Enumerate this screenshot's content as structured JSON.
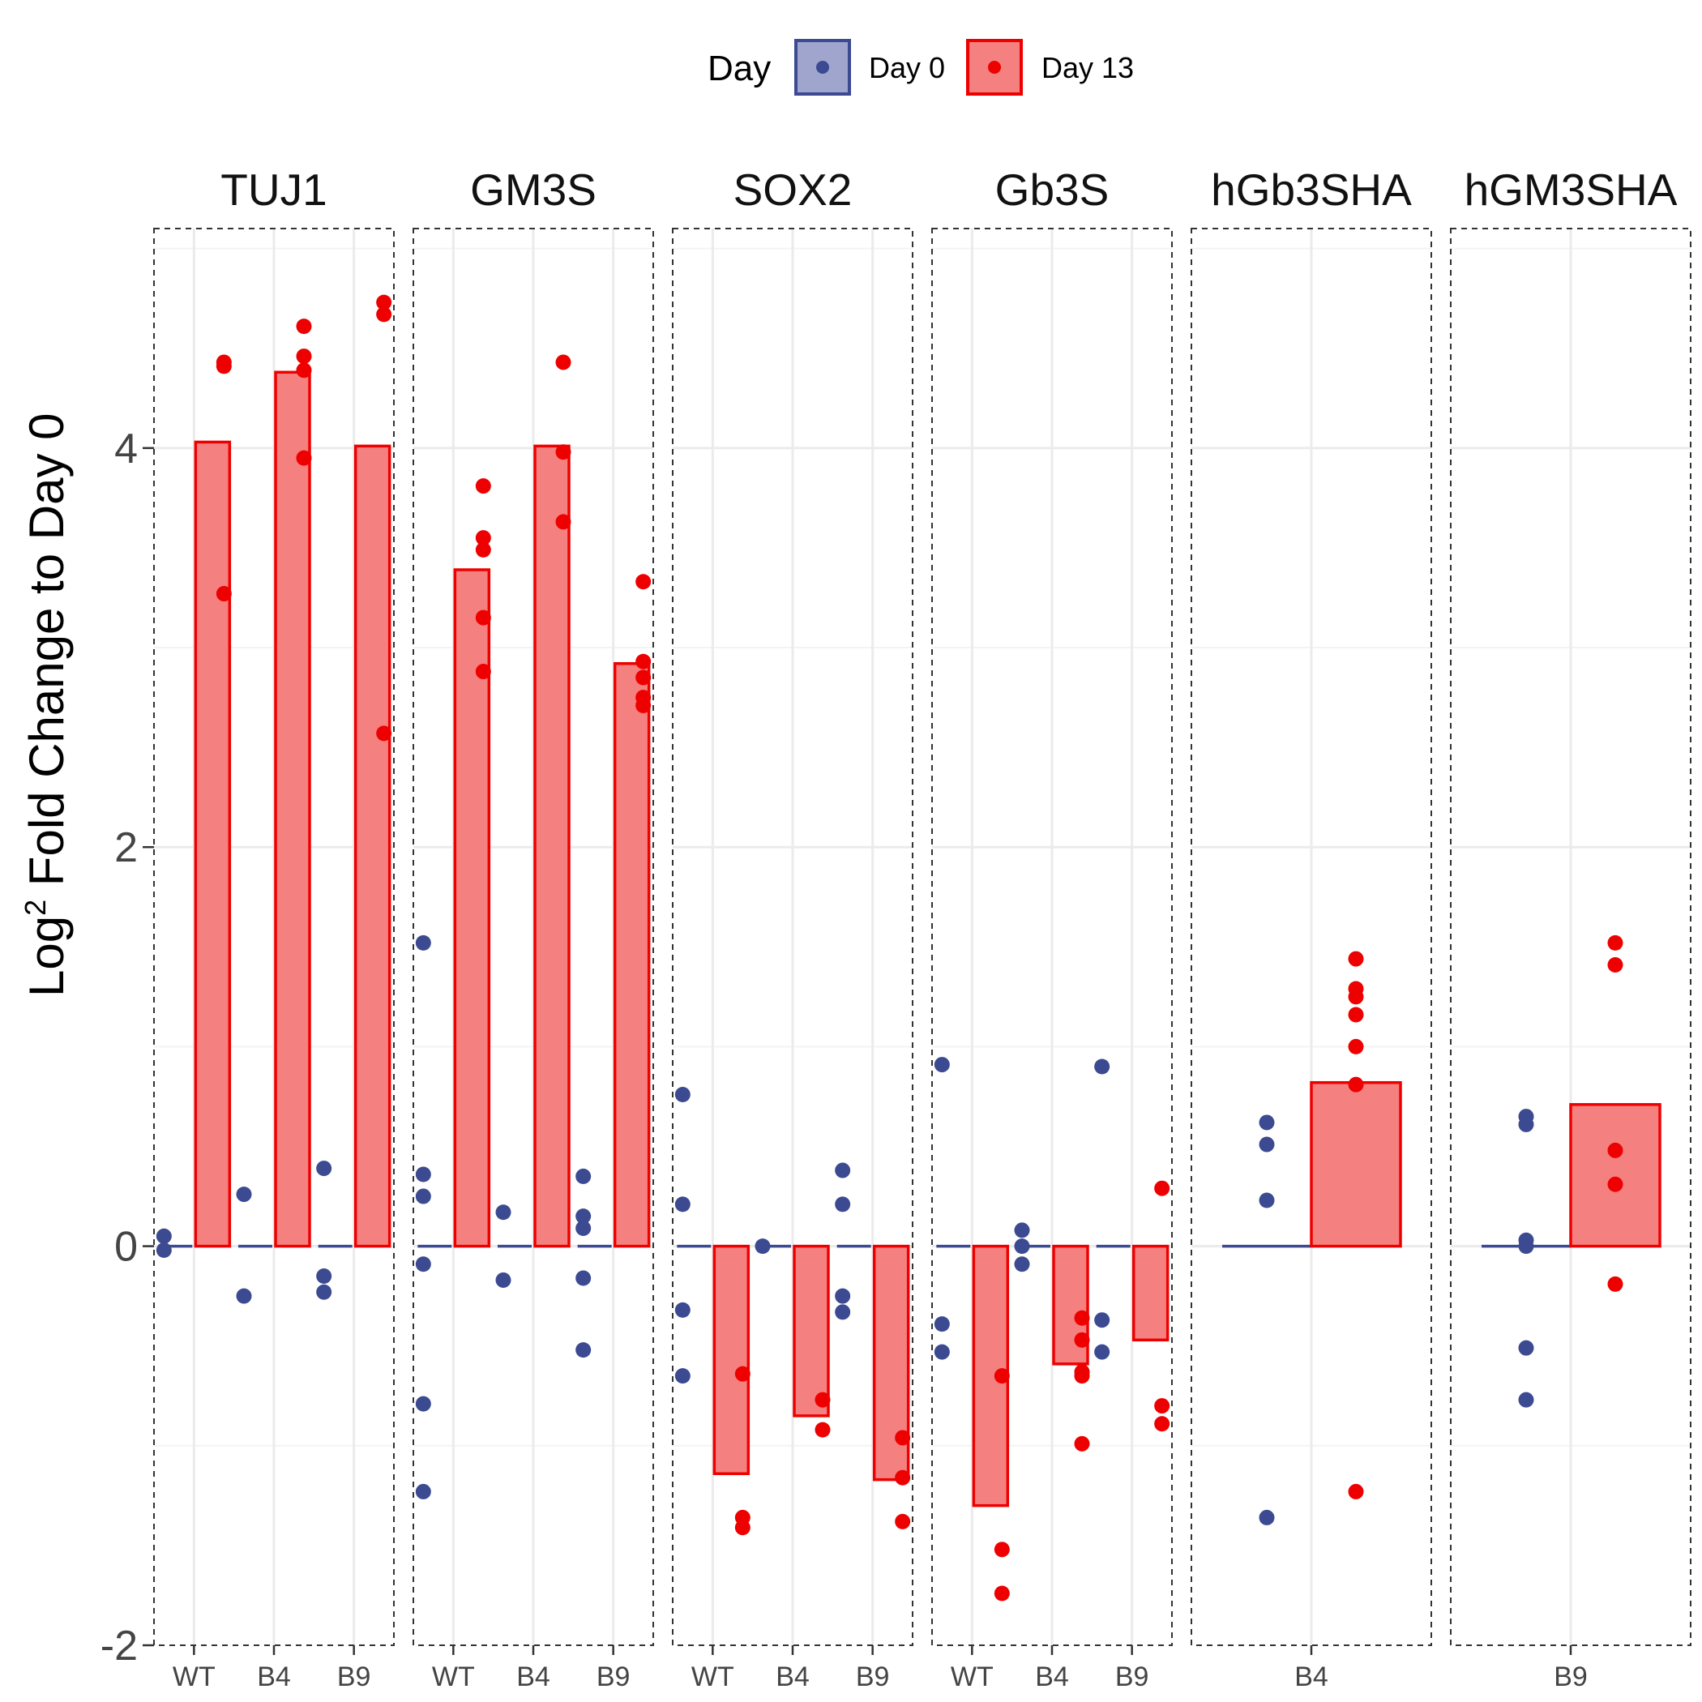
{
  "chart_data": {
    "type": "bar",
    "ylabel": "Log",
    "ylabel_superscript": "2",
    "ylabel_rest": " Fold Change to Day 0",
    "ylim": [
      -2,
      5.1
    ],
    "yticks": [
      -2,
      0,
      2,
      4
    ],
    "grid": true,
    "legend": {
      "title": "Day",
      "position": "top",
      "entries": [
        {
          "label": "Day 0",
          "color": "#3B4A91",
          "fill": "#9FA5CC"
        },
        {
          "label": "Day 13",
          "color": "#EE0000",
          "fill": "#F58080"
        }
      ]
    },
    "colors": {
      "day0": "#3B4A91",
      "day13": "#EE0000",
      "bar_fill": "#F58080"
    },
    "facets": [
      {
        "title": "TUJ1",
        "categories": [
          "WT",
          "B4",
          "B9"
        ],
        "groups": [
          {
            "category": "WT",
            "day0_mean": 0,
            "day13_mean": 4.03,
            "day0_points": [
              0.05,
              -0.02
            ],
            "day13_points": [
              4.43,
              4.41,
              3.27
            ]
          },
          {
            "category": "B4",
            "day0_mean": 0,
            "day13_mean": 4.38,
            "day0_points": [
              0.26,
              -0.25
            ],
            "day13_points": [
              4.61,
              4.46,
              4.39,
              3.95
            ]
          },
          {
            "category": "B9",
            "day0_mean": 0,
            "day13_mean": 4.01,
            "day0_points": [
              0.39,
              -0.15,
              -0.23
            ],
            "day13_points": [
              4.73,
              4.67,
              2.57
            ]
          }
        ]
      },
      {
        "title": "GM3S",
        "categories": [
          "WT",
          "B4",
          "B9"
        ],
        "groups": [
          {
            "category": "WT",
            "day0_mean": 0,
            "day13_mean": 3.39,
            "day0_points": [
              1.52,
              0.36,
              0.25,
              -0.09,
              -0.79,
              -1.23
            ],
            "day13_points": [
              3.81,
              3.55,
              3.49,
              3.15,
              2.88
            ]
          },
          {
            "category": "B4",
            "day0_mean": 0,
            "day13_mean": 4.01,
            "day0_points": [
              0.17,
              -0.17
            ],
            "day13_points": [
              4.43,
              3.98,
              3.63
            ]
          },
          {
            "category": "B9",
            "day0_mean": 0,
            "day13_mean": 2.92,
            "day0_points": [
              0.35,
              0.15,
              0.09,
              -0.16,
              -0.52
            ],
            "day13_points": [
              3.33,
              2.93,
              2.85,
              2.75,
              2.71
            ]
          }
        ]
      },
      {
        "title": "SOX2",
        "categories": [
          "WT",
          "B4",
          "B9"
        ],
        "groups": [
          {
            "category": "WT",
            "day0_mean": 0,
            "day13_mean": -1.14,
            "day0_points": [
              0.76,
              0.21,
              -0.32,
              -0.65
            ],
            "day13_points": [
              -0.64,
              -1.36,
              -1.41
            ]
          },
          {
            "category": "B4",
            "day0_mean": 0,
            "day13_mean": -0.85,
            "day0_points": [
              0.0
            ],
            "day13_points": [
              -0.77,
              -0.92
            ]
          },
          {
            "category": "B9",
            "day0_mean": 0,
            "day13_mean": -1.17,
            "day0_points": [
              0.38,
              0.21,
              -0.25,
              -0.33
            ],
            "day13_points": [
              -0.96,
              -1.16,
              -1.38
            ]
          }
        ]
      },
      {
        "title": "Gb3S",
        "categories": [
          "WT",
          "B4",
          "B9"
        ],
        "groups": [
          {
            "category": "WT",
            "day0_mean": 0,
            "day13_mean": -1.3,
            "day0_points": [
              0.91,
              -0.39,
              -0.53
            ],
            "day13_points": [
              -0.65,
              -1.52,
              -1.74
            ]
          },
          {
            "category": "B4",
            "day0_mean": 0,
            "day13_mean": -0.59,
            "day0_points": [
              0.08,
              0.0,
              -0.09
            ],
            "day13_points": [
              -0.36,
              -0.47,
              -0.63,
              -0.65,
              -0.99
            ]
          },
          {
            "category": "B9",
            "day0_mean": 0,
            "day13_mean": -0.47,
            "day0_points": [
              0.9,
              -0.37,
              -0.53
            ],
            "day13_points": [
              0.29,
              -0.8,
              -0.89
            ]
          }
        ]
      },
      {
        "title": "hGb3SHA",
        "categories": [
          "B4"
        ],
        "groups": [
          {
            "category": "B4",
            "day0_mean": 0,
            "day13_mean": 0.82,
            "day0_points": [
              0.62,
              0.51,
              0.23,
              -1.36
            ],
            "day13_points": [
              1.44,
              1.29,
              1.25,
              1.16,
              1.0,
              0.81,
              -1.23
            ]
          }
        ]
      },
      {
        "title": "hGM3SHA",
        "categories": [
          "B9"
        ],
        "groups": [
          {
            "category": "B9",
            "day0_mean": 0,
            "day13_mean": 0.71,
            "day0_points": [
              0.65,
              0.61,
              0.03,
              0.0,
              -0.51,
              -0.77
            ],
            "day13_points": [
              1.52,
              1.41,
              0.48,
              0.31,
              -0.19
            ]
          }
        ]
      }
    ]
  }
}
